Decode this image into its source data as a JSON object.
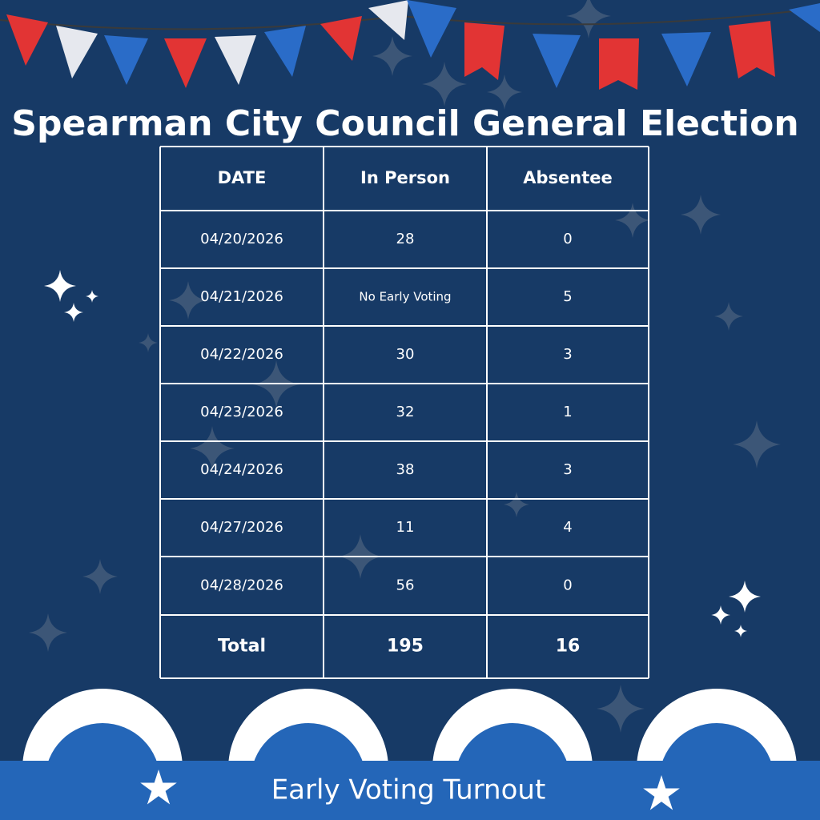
{
  "header": {
    "title": "Spearman City Council General Election"
  },
  "table": {
    "columns": [
      "DATE",
      "In Person",
      "Absentee"
    ],
    "rows": [
      [
        "04/20/2026",
        28,
        0
      ],
      [
        "04/21/2026",
        "No Early Voting",
        5
      ],
      [
        "04/22/2026",
        30,
        3
      ],
      [
        "04/23/2026",
        32,
        1
      ],
      [
        "04/24/2026",
        38,
        3
      ],
      [
        "04/27/2026",
        11,
        4
      ],
      [
        "04/28/2026",
        56,
        0
      ]
    ],
    "total": [
      "Total",
      195,
      16
    ]
  },
  "footer": {
    "text": "Early Voting Turnout"
  }
}
